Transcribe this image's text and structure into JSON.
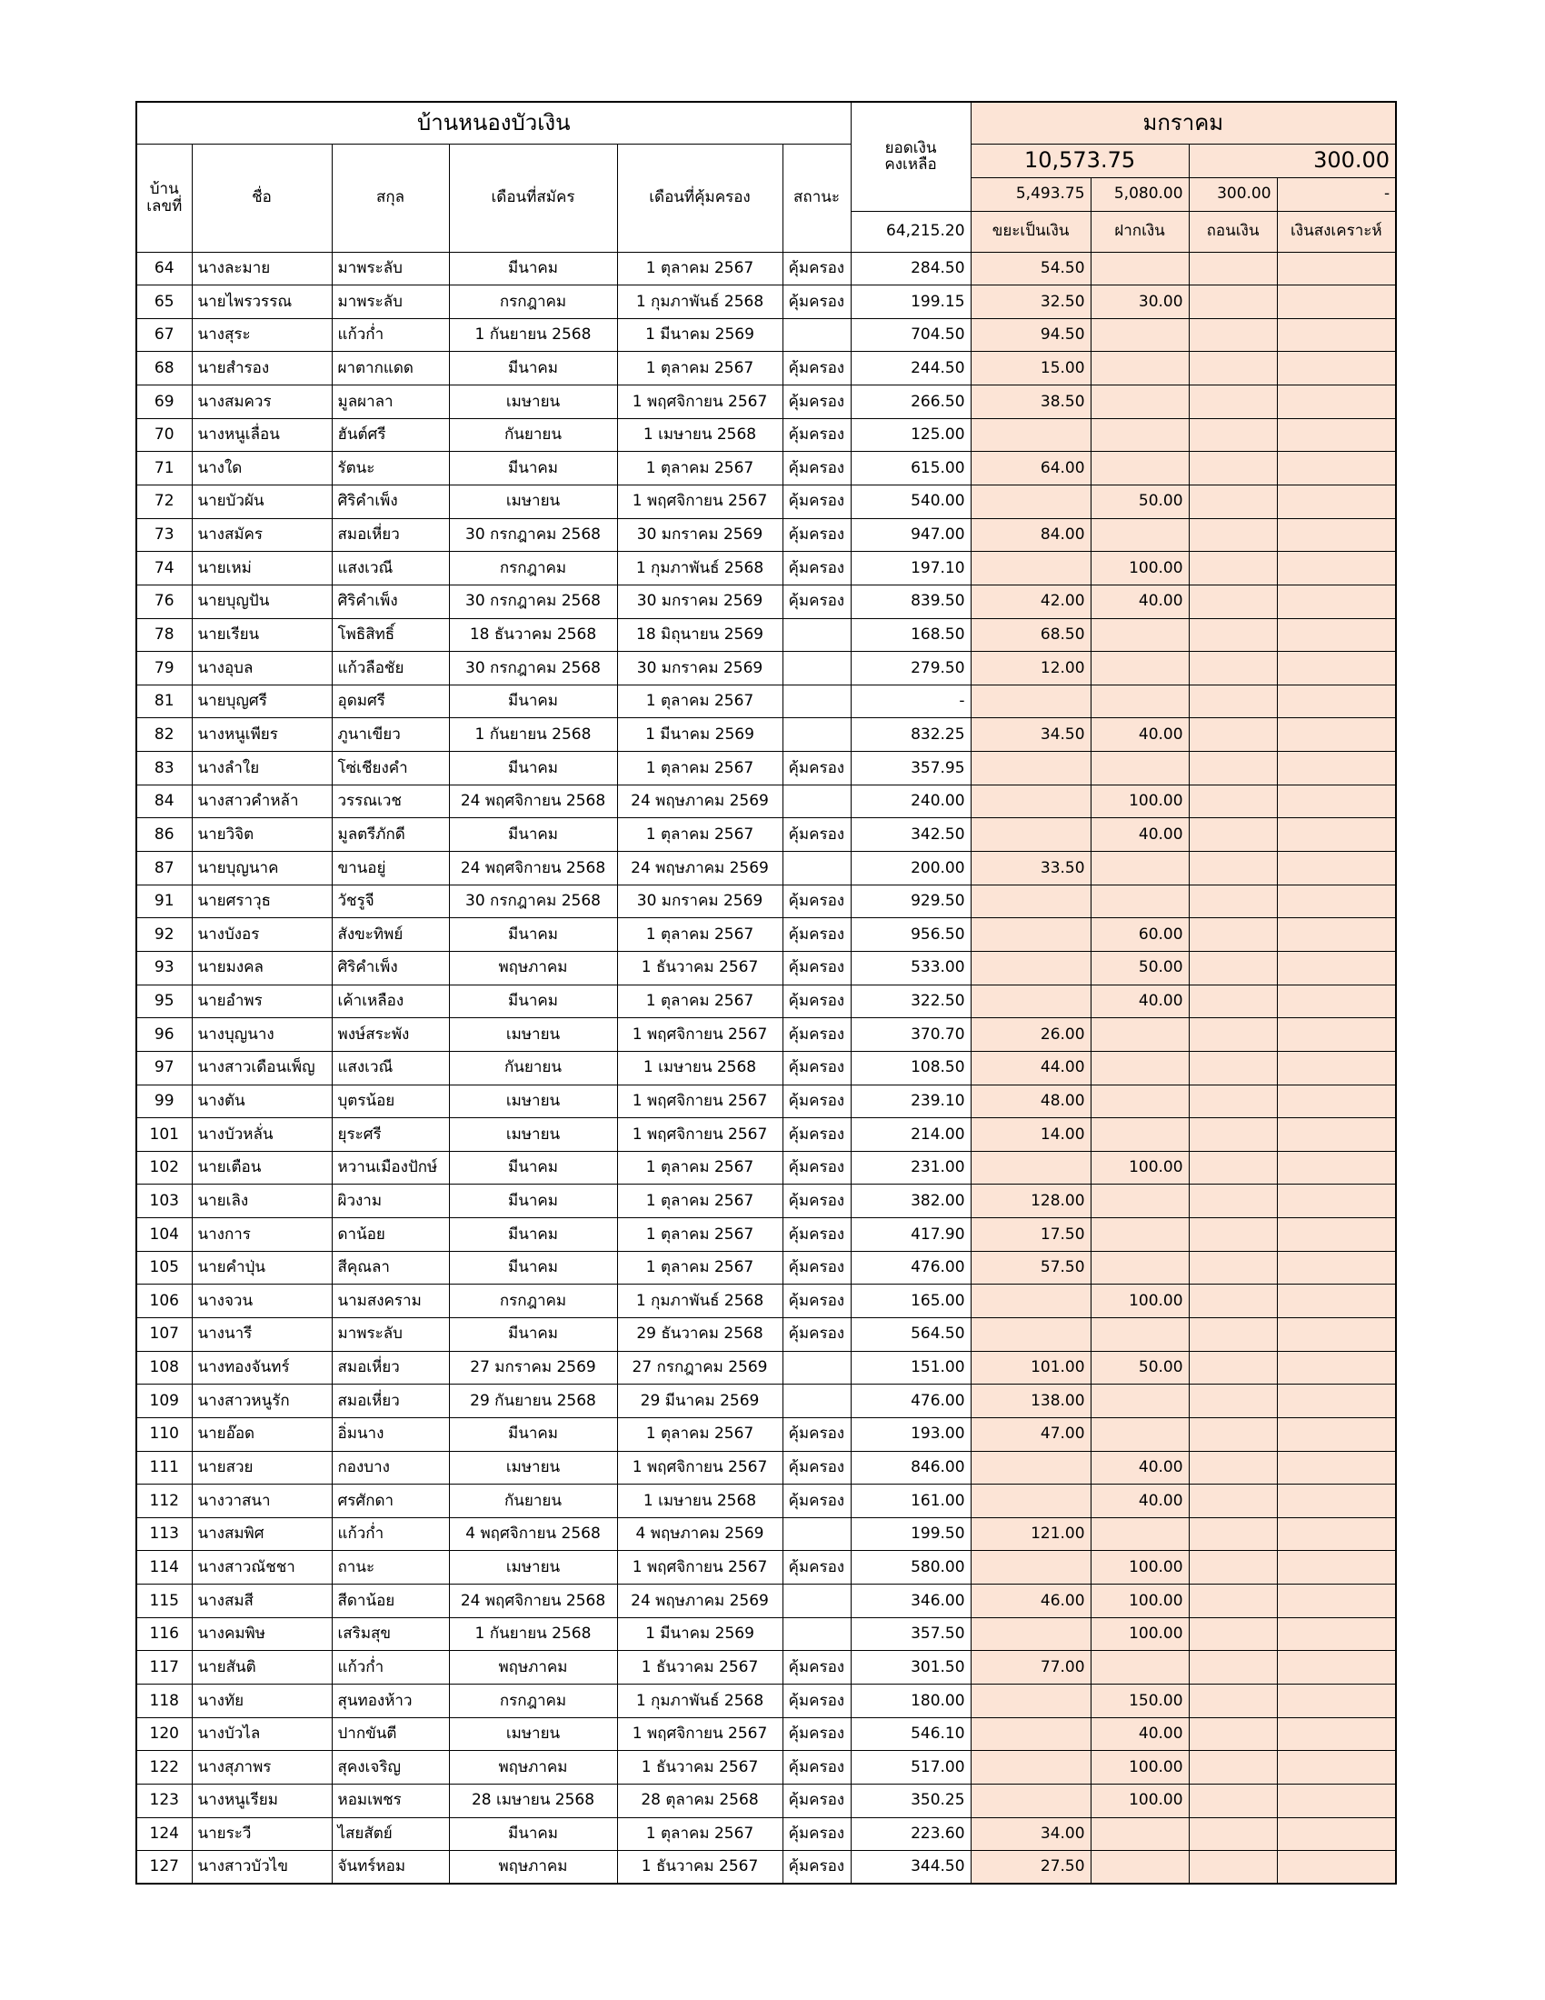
{
  "header": {
    "title": "บ้านหนองบัวเงิน",
    "house_no": "บ้าน\nเลขที่",
    "name": "ชื่อ",
    "surname": "สกุล",
    "applied_month": "เดือนที่สมัคร",
    "protected_month": "เดือนที่คุ้มครอง",
    "status": "สถานะ",
    "balance_label": "ยอดเงิน\nคงเหลือ",
    "balance_total": "64,215.20",
    "month": "มกราคม",
    "total_in": "10,573.75",
    "total_out": "300.00",
    "sum_waste": "5,493.75",
    "sum_deposit": "5,080.00",
    "sum_withdraw": "300.00",
    "sum_welfare": "-",
    "waste": "ขยะเป็นเงิน",
    "deposit": "ฝากเงิน",
    "withdraw": "ถอนเงิน",
    "welfare": "เงินสงเคราะห์"
  },
  "table": {
    "rows": [
      [
        "64",
        "นางละมาย",
        "มาพระลับ",
        "มีนาคม",
        "1 ตุลาคม 2567",
        "คุ้มครอง",
        "284.50",
        "54.50",
        null,
        null,
        null
      ],
      [
        "65",
        "นายไพรวรรณ",
        "มาพระลับ",
        "กรกฎาคม",
        "1 กุมภาพันธ์ 2568",
        "คุ้มครอง",
        "199.15",
        "32.50",
        "30.00",
        null,
        null
      ],
      [
        "67",
        "นางสุระ",
        "แก้วก่ำ",
        "1 กันยายน 2568",
        "1 มีนาคม 2569",
        null,
        "704.50",
        "94.50",
        null,
        null,
        null
      ],
      [
        "68",
        "นายสำรอง",
        "ผาตากแดด",
        "มีนาคม",
        "1 ตุลาคม 2567",
        "คุ้มครอง",
        "244.50",
        "15.00",
        null,
        null,
        null
      ],
      [
        "69",
        "นางสมควร",
        "มูลผาลา",
        "เมษายน",
        "1 พฤศจิกายน 2567",
        "คุ้มครอง",
        "266.50",
        "38.50",
        null,
        null,
        null
      ],
      [
        "70",
        "นางหนูเลื่อน",
        "ฮันต์ศรี",
        "กันยายน",
        "1 เมษายน 2568",
        "คุ้มครอง",
        "125.00",
        null,
        null,
        null,
        null
      ],
      [
        "71",
        "นางใด",
        "รัตนะ",
        "มีนาคม",
        "1 ตุลาคม 2567",
        "คุ้มครอง",
        "615.00",
        "64.00",
        null,
        null,
        null
      ],
      [
        "72",
        "นายบัวผัน",
        "ศิริคำเพ็ง",
        "เมษายน",
        "1 พฤศจิกายน 2567",
        "คุ้มครอง",
        "540.00",
        null,
        "50.00",
        null,
        null
      ],
      [
        "73",
        "นางสมัคร",
        "สมอเหี่ยว",
        "30 กรกฎาคม 2568",
        "30 มกราคม 2569",
        "คุ้มครอง",
        "947.00",
        "84.00",
        null,
        null,
        null
      ],
      [
        "74",
        "นายเหม่",
        "แสงเวณี",
        "กรกฎาคม",
        "1 กุมภาพันธ์ 2568",
        "คุ้มครอง",
        "197.10",
        null,
        "100.00",
        null,
        null
      ],
      [
        "76",
        "นายบุญปัน",
        "ศิริคำเพ็ง",
        "30 กรกฎาคม 2568",
        "30 มกราคม 2569",
        "คุ้มครอง",
        "839.50",
        "42.00",
        "40.00",
        null,
        null
      ],
      [
        "78",
        "นายเรียน",
        "โพธิสิทธิ์",
        "18 ธันวาคม 2568",
        "18 มิถุนายน 2569",
        null,
        "168.50",
        "68.50",
        null,
        null,
        null
      ],
      [
        "79",
        "นางอุบล",
        "แก้วลือชัย",
        "30 กรกฎาคม 2568",
        "30 มกราคม 2569",
        null,
        "279.50",
        "12.00",
        null,
        null,
        null
      ],
      [
        "81",
        "นายบุญศรี",
        "อุดมศรี",
        "มีนาคม",
        "1 ตุลาคม 2567",
        null,
        "-",
        null,
        null,
        null,
        null
      ],
      [
        "82",
        "นางหนูเพียร",
        "ภูนาเขียว",
        "1 กันยายน 2568",
        "1 มีนาคม 2569",
        null,
        "832.25",
        "34.50",
        "40.00",
        null,
        null
      ],
      [
        "83",
        "นางลำใย",
        "โซ่เชียงคำ",
        "มีนาคม",
        "1 ตุลาคม 2567",
        "คุ้มครอง",
        "357.95",
        null,
        null,
        null,
        null
      ],
      [
        "84",
        "นางสาวคำหล้า",
        "วรรณเวช",
        "24 พฤศจิกายน 2568",
        "24 พฤษภาคม 2569",
        null,
        "240.00",
        null,
        "100.00",
        null,
        null
      ],
      [
        "86",
        "นายวิจิต",
        "มูลตรีภักดี",
        "มีนาคม",
        "1 ตุลาคม 2567",
        "คุ้มครอง",
        "342.50",
        null,
        "40.00",
        null,
        null
      ],
      [
        "87",
        "นายบุญนาค",
        "ขานอยู่",
        "24 พฤศจิกายน 2568",
        "24 พฤษภาคม 2569",
        null,
        "200.00",
        "33.50",
        null,
        null,
        null
      ],
      [
        "91",
        "นายศราวุธ",
        "วัชรูจี",
        "30 กรกฎาคม 2568",
        "30 มกราคม 2569",
        "คุ้มครอง",
        "929.50",
        null,
        null,
        null,
        null
      ],
      [
        "92",
        "นางบังอร",
        "สังขะทิพย์",
        "มีนาคม",
        "1 ตุลาคม 2567",
        "คุ้มครอง",
        "956.50",
        null,
        "60.00",
        null,
        null
      ],
      [
        "93",
        "นายมงคล",
        "ศิริคำเพ็ง",
        "พฤษภาคม",
        "1 ธันวาคม 2567",
        "คุ้มครอง",
        "533.00",
        null,
        "50.00",
        null,
        null
      ],
      [
        "95",
        "นายอำพร",
        "เค้าเหลือง",
        "มีนาคม",
        "1 ตุลาคม 2567",
        "คุ้มครอง",
        "322.50",
        null,
        "40.00",
        null,
        null
      ],
      [
        "96",
        "นางบุญนาง",
        "พงษ์สระพัง",
        "เมษายน",
        "1 พฤศจิกายน 2567",
        "คุ้มครอง",
        "370.70",
        "26.00",
        null,
        null,
        null
      ],
      [
        "97",
        "นางสาวเดือนเพ็ญ",
        "แสงเวณี",
        "กันยายน",
        "1 เมษายน 2568",
        "คุ้มครอง",
        "108.50",
        "44.00",
        null,
        null,
        null
      ],
      [
        "99",
        "นางตัน",
        "บุตรน้อย",
        "เมษายน",
        "1 พฤศจิกายน 2567",
        "คุ้มครอง",
        "239.10",
        "48.00",
        null,
        null,
        null
      ],
      [
        "101",
        "นางบัวหลั่น",
        "ยุระศรี",
        "เมษายน",
        "1 พฤศจิกายน 2567",
        "คุ้มครอง",
        "214.00",
        "14.00",
        null,
        null,
        null
      ],
      [
        "102",
        "นายเตือน",
        "หวานเมืองปักษ์",
        "มีนาคม",
        "1 ตุลาคม 2567",
        "คุ้มครอง",
        "231.00",
        null,
        "100.00",
        null,
        null
      ],
      [
        "103",
        "นายเลิง",
        "ผิวงาม",
        "มีนาคม",
        "1 ตุลาคม 2567",
        "คุ้มครอง",
        "382.00",
        "128.00",
        null,
        null,
        null
      ],
      [
        "104",
        "นางการ",
        "ดาน้อย",
        "มีนาคม",
        "1 ตุลาคม 2567",
        "คุ้มครอง",
        "417.90",
        "17.50",
        null,
        null,
        null
      ],
      [
        "105",
        "นายคำปุ่น",
        "สีคุณลา",
        "มีนาคม",
        "1 ตุลาคม 2567",
        "คุ้มครอง",
        "476.00",
        "57.50",
        null,
        null,
        null
      ],
      [
        "106",
        "นางจวน",
        "นามสงคราม",
        "กรกฎาคม",
        "1 กุมภาพันธ์ 2568",
        "คุ้มครอง",
        "165.00",
        null,
        "100.00",
        null,
        null
      ],
      [
        "107",
        "นางนารี",
        "มาพระลับ",
        "มีนาคม",
        "29 ธันวาคม 2568",
        "คุ้มครอง",
        "564.50",
        null,
        null,
        null,
        null
      ],
      [
        "108",
        "นางทองจันทร์",
        "สมอเหี่ยว",
        "27 มกราคม 2569",
        "27 กรกฎาคม 2569",
        null,
        "151.00",
        "101.00",
        "50.00",
        null,
        null
      ],
      [
        "109",
        "นางสาวหนูรัก",
        "สมอเหี่ยว",
        "29 กันยายน 2568",
        "29 มีนาคม 2569",
        null,
        "476.00",
        "138.00",
        null,
        null,
        null
      ],
      [
        "110",
        "นายอ๊อด",
        "อิ่มนาง",
        "มีนาคม",
        "1 ตุลาคม 2567",
        "คุ้มครอง",
        "193.00",
        "47.00",
        null,
        null,
        null
      ],
      [
        "111",
        "นายสวย",
        "กองบาง",
        "เมษายน",
        "1 พฤศจิกายน 2567",
        "คุ้มครอง",
        "846.00",
        null,
        "40.00",
        null,
        null
      ],
      [
        "112",
        "นางวาสนา",
        "ศรศักดา",
        "กันยายน",
        "1 เมษายน 2568",
        "คุ้มครอง",
        "161.00",
        null,
        "40.00",
        null,
        null
      ],
      [
        "113",
        "นางสมพิศ",
        "แก้วก่ำ",
        "4 พฤศจิกายน 2568",
        "4 พฤษภาคม 2569",
        null,
        "199.50",
        "121.00",
        null,
        null,
        null
      ],
      [
        "114",
        "นางสาวณัชชา",
        "ถานะ",
        "เมษายน",
        "1 พฤศจิกายน 2567",
        "คุ้มครอง",
        "580.00",
        null,
        "100.00",
        null,
        null
      ],
      [
        "115",
        "นางสมสี",
        "สีดาน้อย",
        "24 พฤศจิกายน 2568",
        "24 พฤษภาคม 2569",
        null,
        "346.00",
        "46.00",
        "100.00",
        null,
        null
      ],
      [
        "116",
        "นางคมพิษ",
        "เสริมสุข",
        "1 กันยายน 2568",
        "1 มีนาคม 2569",
        null,
        "357.50",
        null,
        "100.00",
        null,
        null
      ],
      [
        "117",
        "นายสันติ",
        "แก้วก่ำ",
        "พฤษภาคม",
        "1 ธันวาคม 2567",
        "คุ้มครอง",
        "301.50",
        "77.00",
        null,
        null,
        null
      ],
      [
        "118",
        "นางทัย",
        "สุนทองห้าว",
        "กรกฎาคม",
        "1 กุมภาพันธ์ 2568",
        "คุ้มครอง",
        "180.00",
        null,
        "150.00",
        null,
        null
      ],
      [
        "120",
        "นางบัวไล",
        "ปากขันตี",
        "เมษายน",
        "1 พฤศจิกายน 2567",
        "คุ้มครอง",
        "546.10",
        null,
        "40.00",
        null,
        null
      ],
      [
        "122",
        "นางสุภาพร",
        "สุคงเจริญ",
        "พฤษภาคม",
        "1 ธันวาคม 2567",
        "คุ้มครอง",
        "517.00",
        null,
        "100.00",
        null,
        null
      ],
      [
        "123",
        "นางหนูเรียม",
        "หอมเพชร",
        "28 เมษายน 2568",
        "28 ตุลาคม 2568",
        "คุ้มครอง",
        "350.25",
        null,
        "100.00",
        null,
        null
      ],
      [
        "124",
        "นายระวี",
        "ไสยสัตย์",
        "มีนาคม",
        "1 ตุลาคม 2567",
        "คุ้มครอง",
        "223.60",
        "34.00",
        null,
        null,
        null
      ],
      [
        "127",
        "นางสาวบัวไข",
        "จันทร์หอม",
        "พฤษภาคม",
        "1 ธันวาคม 2567",
        "คุ้มครอง",
        "344.50",
        "27.50",
        null,
        null,
        null
      ]
    ]
  }
}
